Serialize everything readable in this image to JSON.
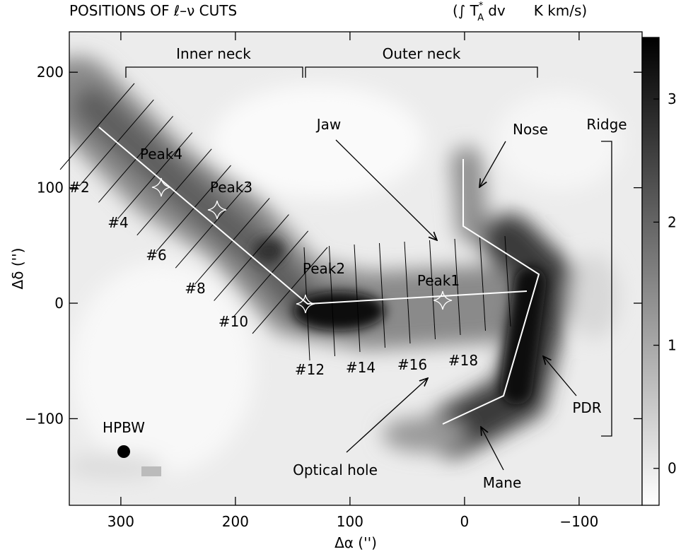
{
  "chart_data": {
    "type": "map",
    "title": "POSITIONS OF ℓ–ν CUTS",
    "colorbar_label": {
      "open": "(∫ T",
      "sup": "*",
      "sub": "A",
      "rest": "dv",
      "unit": "K km/s)"
    },
    "x_label": "Δα ('')",
    "y_label": "Δδ ('')",
    "xlim": [
      345,
      -155
    ],
    "xticks": [
      300,
      200,
      100,
      0,
      {
        "value": -100,
        "label": "−100"
      }
    ],
    "ylim": [
      -175,
      235
    ],
    "yticks": [
      200,
      100,
      0,
      {
        "value": -100,
        "label": "−100"
      }
    ],
    "clim": [
      -0.3,
      3.5
    ],
    "cticks": [
      0,
      1,
      2,
      3
    ],
    "colormap": "gray_r",
    "annotations": {
      "inner_neck": "Inner neck",
      "outer_neck": "Outer neck",
      "jaw": "Jaw",
      "nose": "Nose",
      "ridge": "Ridge",
      "pdr": "PDR",
      "mane": "Mane",
      "optical_hole": "Optical hole",
      "hpbw": "HPBW"
    },
    "peaks": [
      "Peak1",
      "Peak2",
      "Peak3",
      "Peak4"
    ],
    "cut_labels": [
      "#2",
      "#4",
      "#6",
      "#8",
      "#10",
      "#12",
      "#14",
      "#16",
      "#18"
    ]
  }
}
